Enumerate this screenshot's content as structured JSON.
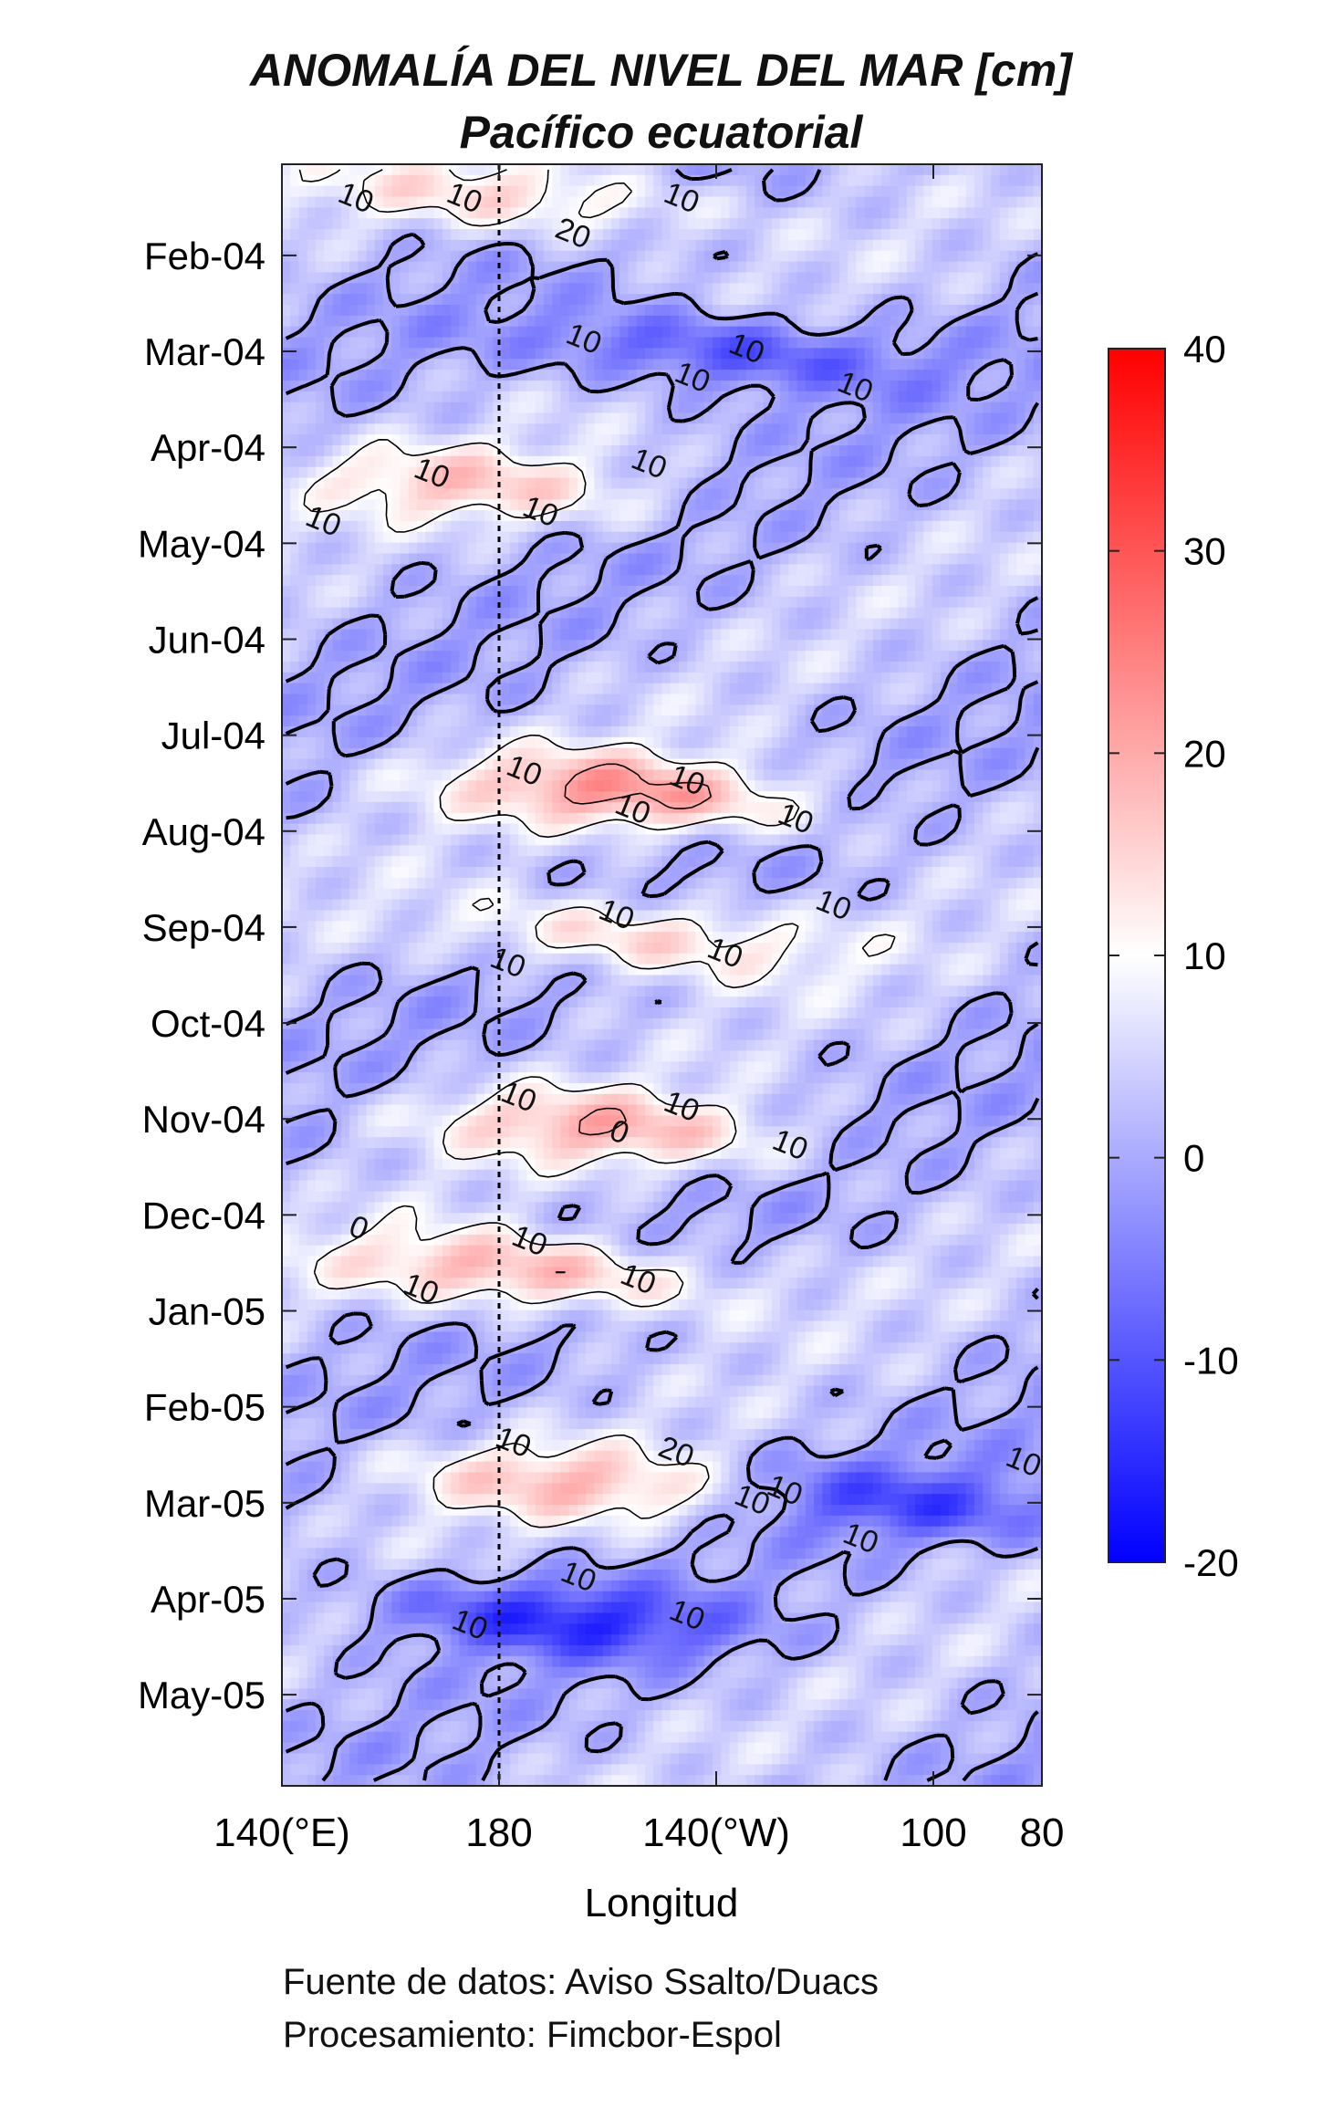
{
  "chart_data": {
    "type": "heatmap",
    "title": "ANOMALÍA DEL NIVEL DEL MAR [cm]",
    "subtitle": "Pacífico ecuatorial",
    "xlabel": "Longitud",
    "ylabel": "",
    "x_ticks": [
      {
        "label": "140(°E)",
        "value": 140
      },
      {
        "label": "180",
        "value": 180
      },
      {
        "label": "140(°W)",
        "value": 220
      },
      {
        "label": "100",
        "value": 260
      },
      {
        "label": "80",
        "value": 280
      }
    ],
    "xlim": [
      140,
      280
    ],
    "y_ticks": [
      "Feb-04",
      "Mar-04",
      "Apr-04",
      "May-04",
      "Jun-04",
      "Jul-04",
      "Aug-04",
      "Sep-04",
      "Oct-04",
      "Nov-04",
      "Dec-04",
      "Jan-05",
      "Feb-05",
      "Mar-05",
      "Apr-05",
      "May-05"
    ],
    "y_tick_month_index": [
      1,
      2,
      3,
      4,
      5,
      6,
      7,
      8,
      9,
      10,
      11,
      12,
      13,
      14,
      15,
      16
    ],
    "ylim_months": [
      0.05,
      16.95
    ],
    "dateline_longitude": 180,
    "colorbar": {
      "ticks": [
        "40",
        "30",
        "20",
        "10",
        "0",
        "-10",
        "-20"
      ],
      "range": [
        -20,
        40
      ],
      "colors": [
        "#0000ff",
        "#ffffff",
        "#ff0000"
      ],
      "white_value": 10
    },
    "contour_levels": [
      0,
      10,
      20
    ],
    "contour_labels_shown": [
      "10",
      "10",
      "10",
      "10",
      "10",
      "10",
      "10",
      "20",
      "10",
      "10",
      "10",
      "10",
      "10",
      "10",
      "10",
      "10",
      "10",
      "10",
      "10",
      "10",
      "20",
      "10",
      "10",
      "10",
      "10",
      "10",
      "10",
      "10",
      "10",
      "10",
      "10",
      "10",
      "10",
      "10",
      "10",
      "0",
      "0"
    ],
    "features": [
      {
        "center_lon": 185,
        "center_month": 0.4,
        "peak": 15
      },
      {
        "center_lon": 220,
        "center_month": 2.0,
        "peak": -12
      },
      {
        "center_lon": 175,
        "center_month": 3.4,
        "peak": 14
      },
      {
        "center_lon": 205,
        "center_month": 6.6,
        "peak": 21
      },
      {
        "center_lon": 205,
        "center_month": 8.1,
        "peak": 16
      },
      {
        "center_lon": 200,
        "center_month": 10.1,
        "peak": 17
      },
      {
        "center_lon": 185,
        "center_month": 11.6,
        "peak": 20
      },
      {
        "center_lon": 195,
        "center_month": 13.8,
        "peak": 16
      },
      {
        "center_lon": 190,
        "center_month": 15.2,
        "peak": -13
      },
      {
        "center_lon": 255,
        "center_month": 14.0,
        "peak": -10
      }
    ]
  },
  "credits": {
    "line1": "Fuente de datos: Aviso Ssalto/Duacs",
    "line2": "Procesamiento: Fimcbor-Espol"
  }
}
